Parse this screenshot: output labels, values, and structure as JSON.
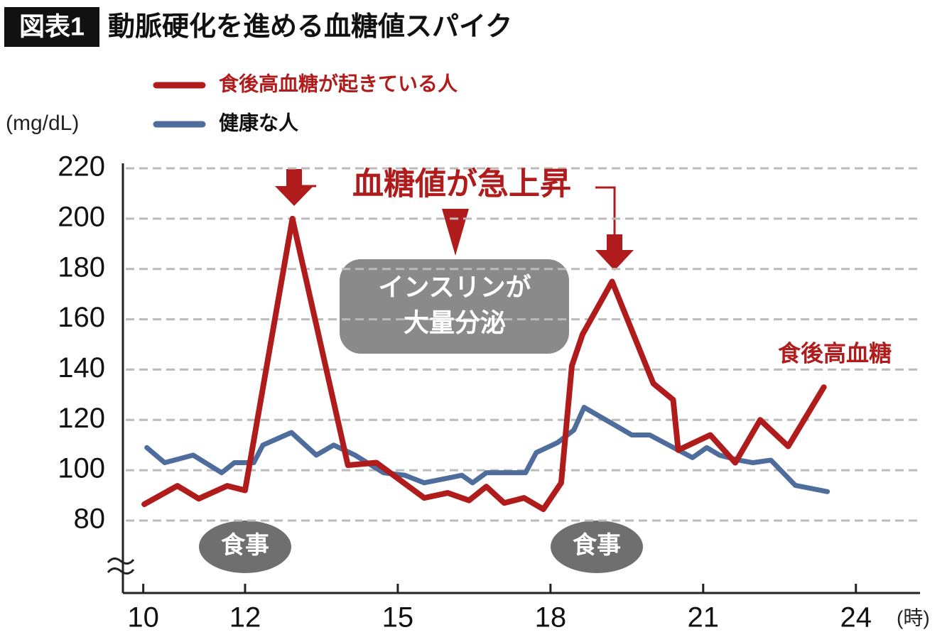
{
  "chart_data": {
    "type": "line",
    "title_tag": "図表1",
    "title": "動脈硬化を進める血糖値スパイク",
    "y_label": "(mg/dL)",
    "x_label": "(時)",
    "series": [
      {
        "name": "食後高血糖が起きている人",
        "color": "#b01c1c",
        "x": [
          10.02,
          10.67,
          11.09,
          11.65,
          12.0,
          12.93,
          14.02,
          14.58,
          15.52,
          15.98,
          16.4,
          16.74,
          17.09,
          17.48,
          17.86,
          18.21,
          18.42,
          18.63,
          19.21,
          20.02,
          20.41,
          20.51,
          21.14,
          21.63,
          22.12,
          22.67,
          23.37
        ],
        "values": [
          86.5,
          93.8,
          88.7,
          93.8,
          92,
          200,
          102,
          103,
          89,
          91,
          88,
          93.5,
          87,
          89,
          84.5,
          95,
          141.5,
          154,
          175,
          134.5,
          128,
          108,
          114,
          103,
          120,
          109.5,
          133
        ]
      },
      {
        "name": "健康な人",
        "color": "#4f6d9c",
        "x": [
          10.07,
          10.42,
          10.98,
          11.54,
          11.79,
          12.17,
          12.35,
          12.91,
          13.4,
          13.74,
          14.16,
          14.72,
          15.14,
          15.52,
          16.26,
          16.47,
          16.74,
          17.51,
          17.72,
          18.14,
          18.46,
          18.66,
          19.6,
          19.95,
          20.79,
          21.07,
          21.32,
          21.7,
          21.98,
          22.33,
          22.81,
          23.44
        ],
        "values": [
          109,
          103,
          106,
          99,
          103,
          103,
          110,
          115,
          106,
          110,
          106,
          99,
          98,
          95,
          98,
          95,
          99,
          99,
          107,
          111,
          116,
          125,
          114,
          114,
          105,
          109,
          106,
          104,
          103,
          104,
          94,
          91.5
        ]
      }
    ],
    "xlim": [
      9.6,
      25.26
    ],
    "xticks": [
      10,
      12,
      15,
      18,
      21,
      24
    ],
    "ylim": [
      80,
      220
    ],
    "yticks": [
      80,
      100,
      120,
      140,
      160,
      180,
      200,
      220
    ],
    "grid": true,
    "annotations": [
      "血糖値が急上昇",
      "インスリンが",
      "大量分泌",
      "食事",
      "食事",
      "食後高血糖"
    ]
  }
}
